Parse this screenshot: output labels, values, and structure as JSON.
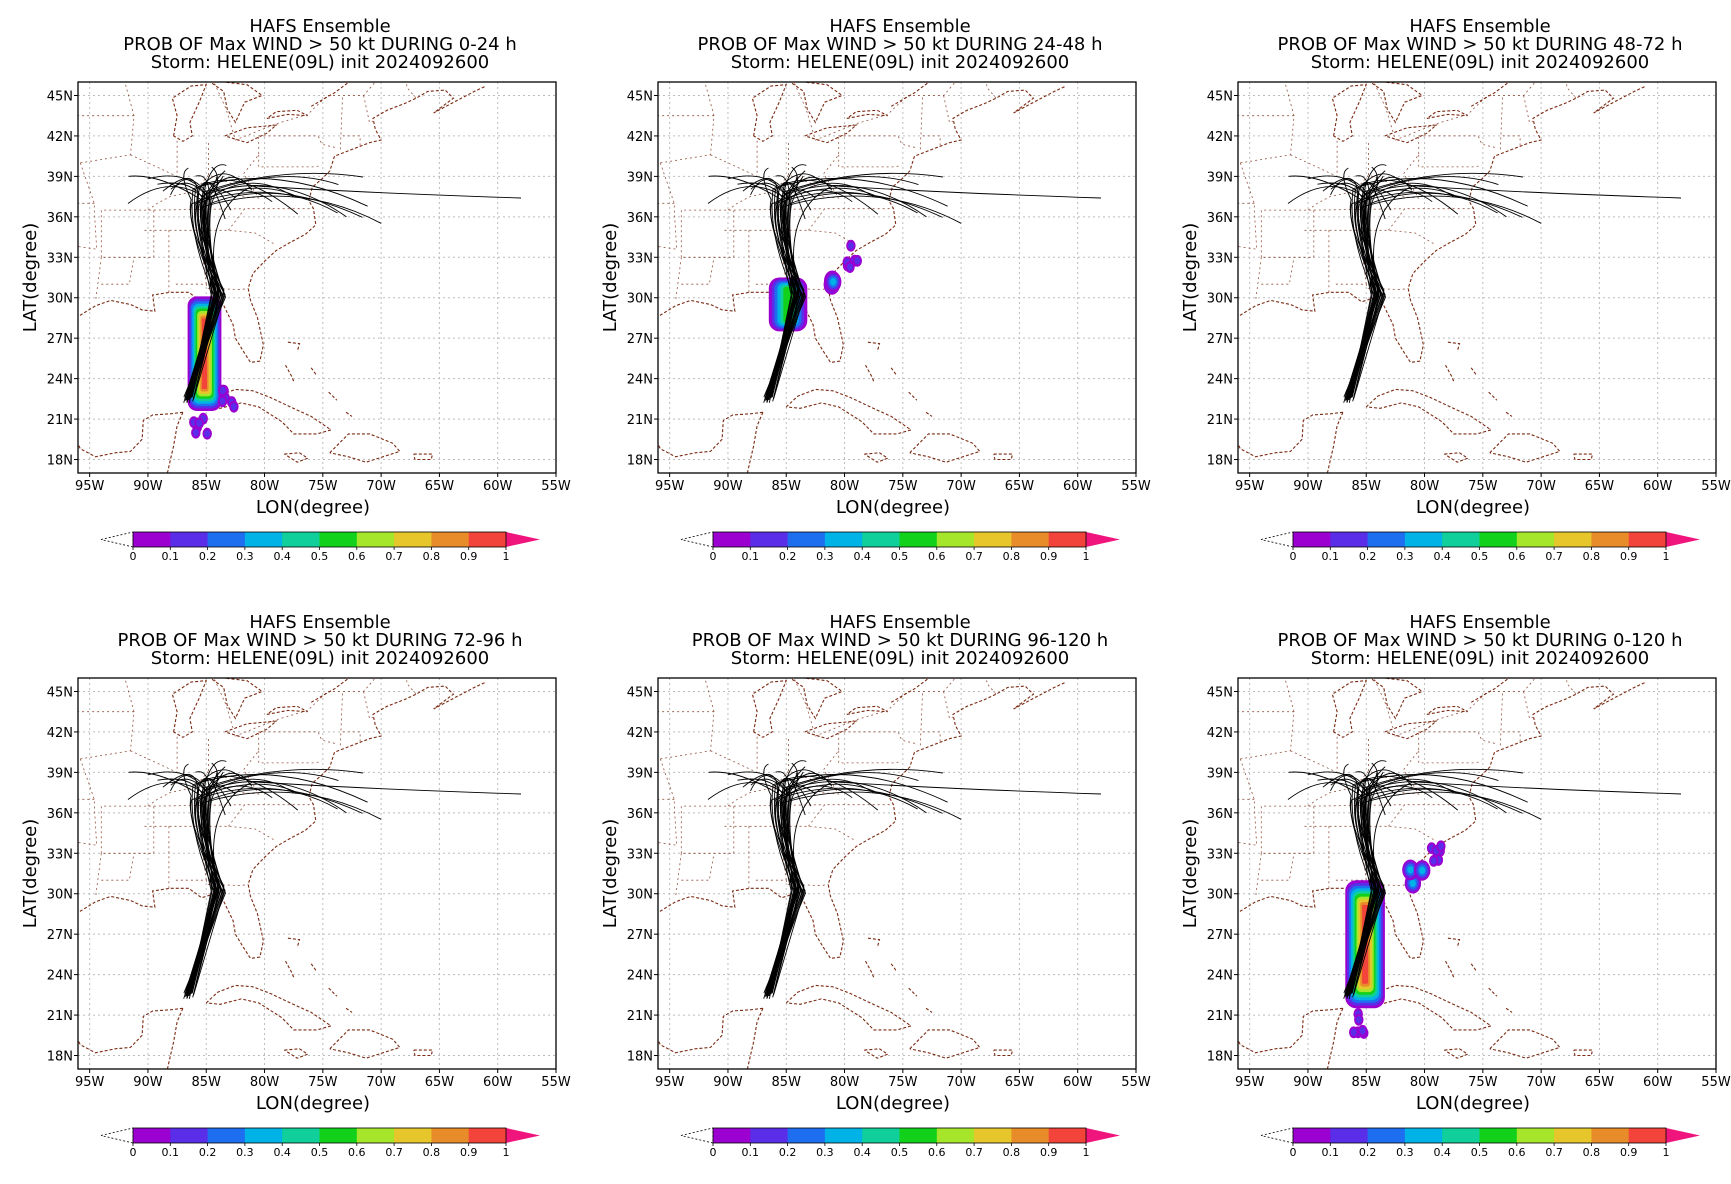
{
  "figure": {
    "panels": [
      {
        "title": [
          "HAFS Ensemble",
          "PROB OF Max WIND > 50 kt DURING  0-24 h",
          "Storm: HELENE(09L) init 2024092600"
        ],
        "prob_blobs": [
          {
            "name": "main-swath",
            "lon_range": [
              -86.6,
              -83.7
            ],
            "lat_range": [
              21.6,
              30.1
            ],
            "peak": 1.0
          },
          {
            "name": "yucatan-tail",
            "lon": -85.5,
            "lat": 20.8,
            "peak": 0.2
          },
          {
            "name": "cuba-scatter",
            "lon": -83.2,
            "lat": 22.8,
            "peak": 0.2
          }
        ]
      },
      {
        "title": [
          "HAFS Ensemble",
          "PROB OF Max WIND > 50 kt DURING 24-48 h",
          "Storm: HELENE(09L) init 2024092600"
        ],
        "prob_blobs": [
          {
            "name": "landfall-swath",
            "lon_range": [
              -86.5,
              -83.2
            ],
            "lat_range": [
              27.5,
              31.5
            ],
            "peak": 0.6
          },
          {
            "name": "atlantic-patch",
            "lon": -80.8,
            "lat": 31.3,
            "peak": 0.4
          },
          {
            "name": "atlantic-scatter",
            "lon": -79.2,
            "lat": 33.2,
            "peak": 0.2
          }
        ]
      },
      {
        "title": [
          "HAFS Ensemble",
          "PROB OF Max WIND > 50 kt DURING 48-72 h",
          "Storm: HELENE(09L) init 2024092600"
        ],
        "prob_blobs": []
      },
      {
        "title": [
          "HAFS Ensemble",
          "PROB OF Max WIND > 50 kt DURING 72-96 h",
          "Storm: HELENE(09L) init 2024092600"
        ],
        "prob_blobs": []
      },
      {
        "title": [
          "HAFS Ensemble",
          "PROB OF Max WIND > 50 kt DURING 96-120 h",
          "Storm: HELENE(09L) init 2024092600"
        ],
        "prob_blobs": []
      },
      {
        "title": [
          "HAFS Ensemble",
          "PROB OF Max WIND > 50 kt DURING 0-120 h",
          "Storm: HELENE(09L) init 2024092600"
        ],
        "prob_blobs": [
          {
            "name": "main-swath",
            "lon_range": [
              -86.8,
              -83.4
            ],
            "lat_range": [
              21.5,
              31.0
            ],
            "peak": 1.0
          },
          {
            "name": "atlantic-patch",
            "lon": -80.8,
            "lat": 31.3,
            "peak": 0.4
          },
          {
            "name": "atlantic-scatter",
            "lon": -79.2,
            "lat": 33.2,
            "peak": 0.2
          },
          {
            "name": "yucatan-tail",
            "lon": -85.5,
            "lat": 20.2,
            "peak": 0.2
          }
        ]
      }
    ],
    "map_extent": {
      "lon": [
        -96,
        -55
      ],
      "lat": [
        17,
        46
      ]
    },
    "x_ticks": [
      "95W",
      "90W",
      "85W",
      "80W",
      "75W",
      "70W",
      "65W",
      "60W",
      "55W"
    ],
    "y_ticks": [
      "45N",
      "42N",
      "39N",
      "36N",
      "33N",
      "30N",
      "27N",
      "24N",
      "21N",
      "18N"
    ],
    "xlabel": "LON(degree)",
    "ylabel": "LAT(degree)",
    "colorbar": {
      "ticks": [
        "0",
        "0.1",
        "0.2",
        "0.3",
        "0.4",
        "0.5",
        "0.6",
        "0.7",
        "0.8",
        "0.9",
        "1"
      ],
      "colors": [
        "#9b00d0",
        "#5a2ee8",
        "#1e6ff0",
        "#00b3e6",
        "#10cf9a",
        "#12d11a",
        "#a6e62a",
        "#e6c62a",
        "#e88c2a",
        "#f2443a"
      ],
      "over_color": "#f0147d",
      "under_color": "#ffffff"
    },
    "grid_color": "#bdbdbd",
    "coast_color": "#7a2a12",
    "track_color": "#000000",
    "track_fan": {
      "start": {
        "lon": -86.5,
        "lat": 22.5
      },
      "landfall": {
        "lon": -84.0,
        "lat": 30.3
      },
      "members": 30,
      "end_lon_range": [
        -92.0,
        -70.0
      ],
      "end_lat_range": [
        35.5,
        40.0
      ],
      "outlier_end": {
        "lon": -58,
        "lat": 37.4
      }
    }
  }
}
